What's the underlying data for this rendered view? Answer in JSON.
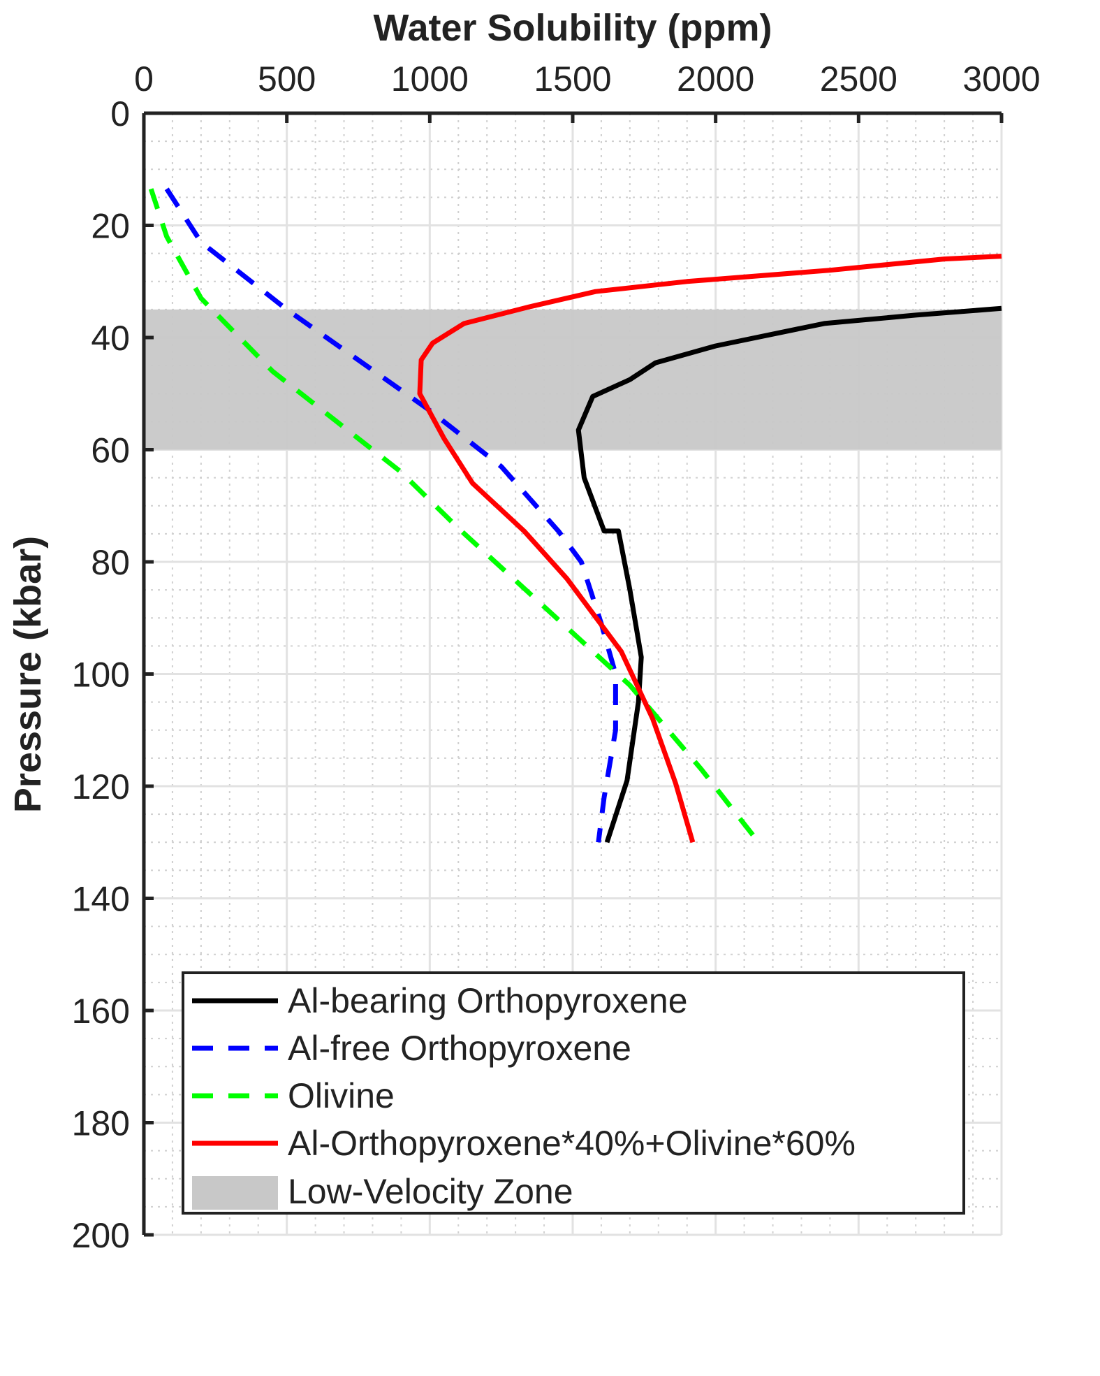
{
  "chart_data": {
    "type": "line",
    "xlabel": "Water Solubility (ppm)",
    "ylabel": "Pressure (kbar)",
    "xlim": [
      0,
      3000
    ],
    "ylim": [
      0,
      200
    ],
    "x_axis_position": "top",
    "y_axis_direction": "reversed",
    "x_ticks": [
      0,
      500,
      1000,
      1500,
      2000,
      2500,
      3000
    ],
    "y_ticks": [
      0,
      20,
      40,
      60,
      80,
      100,
      120,
      140,
      160,
      180,
      200
    ],
    "grid": true,
    "minor_grid": true,
    "legend_position": "bottom-left",
    "shaded_band": {
      "name": "Low-Velocity Zone",
      "y_from": 35,
      "y_to": 60,
      "color": "#c8c8c8"
    },
    "series": [
      {
        "name": "Al-bearing Orthopyroxene",
        "color": "#000000",
        "dash": "solid",
        "points": [
          [
            3000,
            34.8
          ],
          [
            2700,
            36
          ],
          [
            2380,
            37.5
          ],
          [
            2000,
            41.5
          ],
          [
            1790,
            44.5
          ],
          [
            1700,
            47.5
          ],
          [
            1570,
            50.5
          ],
          [
            1520,
            56.5
          ],
          [
            1540,
            65
          ],
          [
            1610,
            74.5
          ],
          [
            1660,
            74.5
          ],
          [
            1700,
            85
          ],
          [
            1740,
            97
          ],
          [
            1730,
            105
          ],
          [
            1690,
            119
          ],
          [
            1620,
            130
          ]
        ]
      },
      {
        "name": "Al-free Orthopyroxene",
        "color": "#0000ff",
        "dash": "dashed",
        "points": [
          [
            80,
            13.5
          ],
          [
            200,
            23
          ],
          [
            500,
            35
          ],
          [
            1000,
            53
          ],
          [
            1250,
            63
          ],
          [
            1450,
            74.5
          ],
          [
            1530,
            80
          ],
          [
            1600,
            91
          ],
          [
            1650,
            100
          ],
          [
            1650,
            110
          ],
          [
            1610,
            122
          ],
          [
            1590,
            130
          ]
        ]
      },
      {
        "name": "Olivine",
        "color": "#00ff00",
        "dash": "dashed",
        "points": [
          [
            25,
            13.5
          ],
          [
            80,
            22
          ],
          [
            200,
            33
          ],
          [
            450,
            46
          ],
          [
            900,
            64
          ],
          [
            1100,
            74
          ],
          [
            1400,
            88
          ],
          [
            1700,
            102
          ],
          [
            1950,
            117
          ],
          [
            2150,
            130
          ]
        ]
      },
      {
        "name": "Al-Orthopyroxene*40%+Olivine*60%",
        "color": "#ff0000",
        "dash": "solid",
        "points": [
          [
            3000,
            25.5
          ],
          [
            2800,
            26
          ],
          [
            2400,
            28
          ],
          [
            1900,
            30
          ],
          [
            1580,
            31.8
          ],
          [
            1350,
            34.5
          ],
          [
            1120,
            37.5
          ],
          [
            1010,
            41
          ],
          [
            970,
            44
          ],
          [
            965,
            50
          ],
          [
            1050,
            58
          ],
          [
            1150,
            66
          ],
          [
            1330,
            74.5
          ],
          [
            1480,
            83
          ],
          [
            1670,
            96
          ],
          [
            1780,
            108
          ],
          [
            1860,
            119.5
          ],
          [
            1920,
            130
          ]
        ]
      }
    ]
  }
}
